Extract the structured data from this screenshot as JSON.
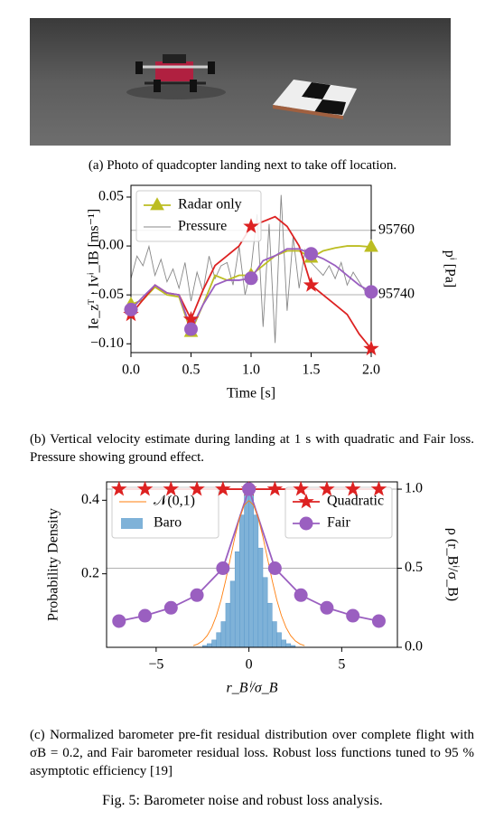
{
  "photo_caption": "(a) Photo of quadcopter landing next to take off location.",
  "captions": [
    "(b) Vertical velocity estimate during landing at 1 s with quadratic and Fair loss. Pressure showing ground effect.",
    "(c) Normalized barometer pre-fit residual distribution over complete flight with σB = 0.2, and Fair barometer residual loss. Robust loss functions tuned to 95 % asymptotic efficiency [19]"
  ],
  "figure_caption": "Fig. 5: Barometer noise and robust loss analysis.",
  "chart_data": [
    {
      "type": "line",
      "xlabel": "Time [s]",
      "ylabel": "Ie_zᵀ · Ivⁱ_IB [ms⁻¹]",
      "y2label": "pⁱ [Pa]",
      "xlim": [
        0,
        2
      ],
      "ylim": [
        -0.109,
        0.062
      ],
      "y2lim": [
        95722,
        95774
      ],
      "xticks": [
        {
          "value": 0,
          "label": "0.0"
        },
        {
          "value": 0.5,
          "label": "0.5"
        },
        {
          "value": 1,
          "label": "1.0"
        },
        {
          "value": 1.5,
          "label": "1.5"
        },
        {
          "value": 2,
          "label": "2.0"
        }
      ],
      "yticks": [
        {
          "value": 0.05,
          "label": "0.05"
        },
        {
          "value": 0,
          "label": "0.00"
        },
        {
          "value": -0.05,
          "label": "−0.05"
        },
        {
          "value": -0.1,
          "label": "−0.10"
        }
      ],
      "y2ticks": [
        95740,
        95760
      ],
      "grid_axis": "y2",
      "legend": "upper left",
      "series": [
        {
          "name": "Radar only",
          "color": "#bcbd22",
          "marker": "triangle",
          "x": [
            0,
            0.1,
            0.2,
            0.3,
            0.4,
            0.5,
            0.6,
            0.7,
            0.8,
            0.9,
            1,
            1.1,
            1.2,
            1.3,
            1.4,
            1.5,
            1.6,
            1.7,
            1.8,
            1.9,
            2
          ],
          "values": [
            -0.06,
            -0.055,
            -0.042,
            -0.05,
            -0.052,
            -0.088,
            -0.06,
            -0.03,
            -0.035,
            -0.03,
            -0.03,
            -0.02,
            -0.01,
            -0.005,
            -0.005,
            -0.012,
            -0.005,
            -0.002,
            0,
            0,
            -0.001
          ]
        },
        {
          "name": "Pressure",
          "color": "#888888",
          "axis": "y2",
          "x": [
            0,
            0.05,
            0.1,
            0.15,
            0.2,
            0.25,
            0.3,
            0.35,
            0.4,
            0.45,
            0.5,
            0.55,
            0.6,
            0.65,
            0.7,
            0.75,
            0.8,
            0.85,
            0.9,
            0.95,
            1,
            1.05,
            1.1,
            1.15,
            1.2,
            1.25,
            1.3,
            1.35,
            1.4,
            1.45,
            1.5,
            1.55,
            1.6,
            1.65,
            1.7,
            1.75,
            1.8,
            1.85,
            1.9,
            1.95,
            2
          ],
          "values": [
            95745,
            95752,
            95749,
            95755,
            95746,
            95751,
            95744,
            95748,
            95742,
            95750,
            95738,
            95747,
            95741,
            95752,
            95745,
            95749,
            95750,
            95743,
            95755,
            95740,
            95748,
            95765,
            95730,
            95762,
            95725,
            95771,
            95735,
            95758,
            95742,
            95754,
            95750,
            95748,
            95746,
            95749,
            95745,
            95750,
            95743,
            95747,
            95744,
            95741,
            95740
          ]
        },
        {
          "color": "#dd2222",
          "marker": "star",
          "x": [
            0,
            0.1,
            0.2,
            0.3,
            0.4,
            0.5,
            0.6,
            0.7,
            0.8,
            0.9,
            1,
            1.1,
            1.2,
            1.3,
            1.4,
            1.5,
            1.6,
            1.7,
            1.8,
            1.9,
            2
          ],
          "values": [
            -0.07,
            -0.055,
            -0.04,
            -0.048,
            -0.05,
            -0.075,
            -0.045,
            -0.02,
            -0.01,
            0,
            0.02,
            0.025,
            0.03,
            0.02,
            0,
            -0.04,
            -0.05,
            -0.06,
            -0.07,
            -0.09,
            -0.105
          ]
        },
        {
          "color": "#9a5fc0",
          "marker": "circle",
          "x": [
            0,
            0.1,
            0.2,
            0.3,
            0.4,
            0.5,
            0.6,
            0.7,
            0.8,
            0.9,
            1,
            1.1,
            1.2,
            1.3,
            1.4,
            1.5,
            1.6,
            1.7,
            1.8,
            1.9,
            2
          ],
          "values": [
            -0.065,
            -0.052,
            -0.04,
            -0.048,
            -0.05,
            -0.085,
            -0.06,
            -0.04,
            -0.035,
            -0.035,
            -0.033,
            -0.015,
            -0.01,
            -0.003,
            -0.003,
            -0.008,
            -0.013,
            -0.02,
            -0.03,
            -0.04,
            -0.047
          ]
        }
      ]
    },
    {
      "type": "histogram",
      "xlabel": "r_Bⁱ/σ_B",
      "ylabel": "Probability Density",
      "y2label": "ρ (r_Bⁱ/σ_B)",
      "xlim": [
        -7.67,
        8
      ],
      "ylim": [
        0,
        0.45
      ],
      "y2lim": [
        0,
        1.046
      ],
      "xticks": [
        {
          "value": -5,
          "label": "−5"
        },
        0,
        5
      ],
      "yticks": [
        0.2,
        0.4
      ],
      "y2ticks": [
        {
          "value": 0,
          "label": "0.0"
        },
        0.5,
        {
          "value": 1,
          "label": "1.0"
        }
      ],
      "grid_axis": "y2",
      "legend": {
        "y": "upper left",
        "y2": "upper right"
      },
      "name": "Baro",
      "color": "#7fb2d8",
      "bins": [
        -2.5,
        -2.25,
        -2,
        -1.75,
        -1.5,
        -1.25,
        -1,
        -0.75,
        -0.5,
        -0.25,
        0,
        0.25,
        0.5,
        0.75,
        1,
        1.25,
        1.5,
        1.75,
        2,
        2.25,
        2.5
      ],
      "values": [
        0.005,
        0.01,
        0.02,
        0.04,
        0.07,
        0.12,
        0.18,
        0.26,
        0.36,
        0.44,
        0.43,
        0.36,
        0.27,
        0.19,
        0.12,
        0.07,
        0.04,
        0.02,
        0.01,
        0.005
      ],
      "series": [
        {
          "name": "𝒩(0,1)",
          "color": "#ff7f0e",
          "x": [
            -3,
            -2.75,
            -2.5,
            -2.25,
            -2,
            -1.75,
            -1.5,
            -1.25,
            -1,
            -0.75,
            -0.5,
            -0.25,
            0,
            0.25,
            0.5,
            0.75,
            1,
            1.25,
            1.5,
            1.75,
            2,
            2.25,
            2.5,
            2.75,
            3
          ],
          "values": [
            0.0044,
            0.0091,
            0.0175,
            0.0317,
            0.054,
            0.0863,
            0.1295,
            0.1826,
            0.242,
            0.3011,
            0.3521,
            0.3867,
            0.399,
            0.3867,
            0.3521,
            0.3011,
            0.242,
            0.1826,
            0.1295,
            0.0863,
            0.054,
            0.0317,
            0.0175,
            0.0091,
            0.0044
          ]
        },
        {
          "name": "Quadratic",
          "color": "#dd2222",
          "marker": "star",
          "axis": "y2",
          "x": [
            -7,
            -5.6,
            -4.2,
            -2.8,
            -1.4,
            0,
            1.4,
            2.8,
            4.2,
            5.6,
            7
          ],
          "values": [
            1,
            1,
            1,
            1,
            1,
            1,
            1,
            1,
            1,
            1,
            1
          ]
        },
        {
          "name": "Fair",
          "color": "#9a5fc0",
          "marker": "circle",
          "axis": "y2",
          "x": [
            -7,
            -5.6,
            -4.2,
            -2.8,
            -1.4,
            0,
            1.4,
            2.8,
            4.2,
            5.6,
            7
          ],
          "values": [
            0.166,
            0.2,
            0.25,
            0.33,
            0.5,
            1,
            0.5,
            0.33,
            0.25,
            0.2,
            0.166
          ]
        }
      ]
    }
  ]
}
